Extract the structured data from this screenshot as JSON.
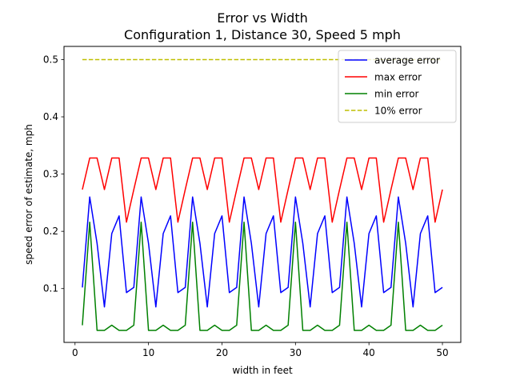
{
  "chart_data": {
    "type": "line",
    "title": "Error vs Width",
    "subtitle": "Configuration 1, Distance 30, Speed 5 mph",
    "xlabel": "width in feet",
    "ylabel": "speed error of estimate, mph",
    "xlim": [
      -1.5,
      52.5
    ],
    "ylim": [
      0.006,
      0.523
    ],
    "xticks": [
      0,
      10,
      20,
      30,
      40,
      50
    ],
    "yticks": [
      0.1,
      0.2,
      0.3,
      0.4,
      0.5
    ],
    "grid": false,
    "legend_position": "top-right",
    "x": [
      1,
      2,
      3,
      4,
      5,
      6,
      7,
      8,
      9,
      10,
      11,
      12,
      13,
      14,
      15,
      16,
      17,
      18,
      19,
      20,
      21,
      22,
      23,
      24,
      25,
      26,
      27,
      28,
      29,
      30,
      31,
      32,
      33,
      34,
      35,
      36,
      37,
      38,
      39,
      40,
      41,
      42,
      43,
      44,
      45,
      46,
      47,
      48,
      49,
      50
    ],
    "series": [
      {
        "name": "average error",
        "color": "#0000ff",
        "style": "solid",
        "values": [
          0.102,
          0.26,
          0.179,
          0.068,
          0.196,
          0.227,
          0.093,
          0.102,
          0.26,
          0.179,
          0.068,
          0.196,
          0.227,
          0.093,
          0.102,
          0.26,
          0.179,
          0.068,
          0.196,
          0.227,
          0.093,
          0.102,
          0.26,
          0.179,
          0.068,
          0.196,
          0.227,
          0.093,
          0.102,
          0.26,
          0.179,
          0.068,
          0.196,
          0.227,
          0.093,
          0.102,
          0.26,
          0.179,
          0.068,
          0.196,
          0.227,
          0.093,
          0.102,
          0.26,
          0.179,
          0.068,
          0.196,
          0.227,
          0.093,
          0.102
        ]
      },
      {
        "name": "max error",
        "color": "#ff0000",
        "style": "solid",
        "values": [
          0.273,
          0.328,
          0.328,
          0.273,
          0.328,
          0.328,
          0.216,
          0.273,
          0.328,
          0.328,
          0.273,
          0.328,
          0.328,
          0.216,
          0.273,
          0.328,
          0.328,
          0.273,
          0.328,
          0.328,
          0.216,
          0.273,
          0.328,
          0.328,
          0.273,
          0.328,
          0.328,
          0.216,
          0.273,
          0.328,
          0.328,
          0.273,
          0.328,
          0.328,
          0.216,
          0.273,
          0.328,
          0.328,
          0.273,
          0.328,
          0.328,
          0.216,
          0.273,
          0.328,
          0.328,
          0.273,
          0.328,
          0.328,
          0.216,
          0.273
        ]
      },
      {
        "name": "min error",
        "color": "#008000",
        "style": "solid",
        "values": [
          0.036,
          0.216,
          0.027,
          0.027,
          0.036,
          0.027,
          0.027,
          0.036,
          0.216,
          0.027,
          0.027,
          0.036,
          0.027,
          0.027,
          0.036,
          0.216,
          0.027,
          0.027,
          0.036,
          0.027,
          0.027,
          0.036,
          0.216,
          0.027,
          0.027,
          0.036,
          0.027,
          0.027,
          0.036,
          0.216,
          0.027,
          0.027,
          0.036,
          0.027,
          0.027,
          0.036,
          0.216,
          0.027,
          0.027,
          0.036,
          0.027,
          0.027,
          0.036,
          0.216,
          0.027,
          0.027,
          0.036,
          0.027,
          0.027,
          0.036
        ]
      },
      {
        "name": "10% error",
        "color": "#bfbf00",
        "style": "dashed",
        "values": [
          0.5,
          0.5,
          0.5,
          0.5,
          0.5,
          0.5,
          0.5,
          0.5,
          0.5,
          0.5,
          0.5,
          0.5,
          0.5,
          0.5,
          0.5,
          0.5,
          0.5,
          0.5,
          0.5,
          0.5,
          0.5,
          0.5,
          0.5,
          0.5,
          0.5,
          0.5,
          0.5,
          0.5,
          0.5,
          0.5,
          0.5,
          0.5,
          0.5,
          0.5,
          0.5,
          0.5,
          0.5,
          0.5,
          0.5,
          0.5,
          0.5,
          0.5,
          0.5,
          0.5,
          0.5,
          0.5,
          0.5,
          0.5,
          0.5,
          0.5
        ]
      }
    ]
  }
}
